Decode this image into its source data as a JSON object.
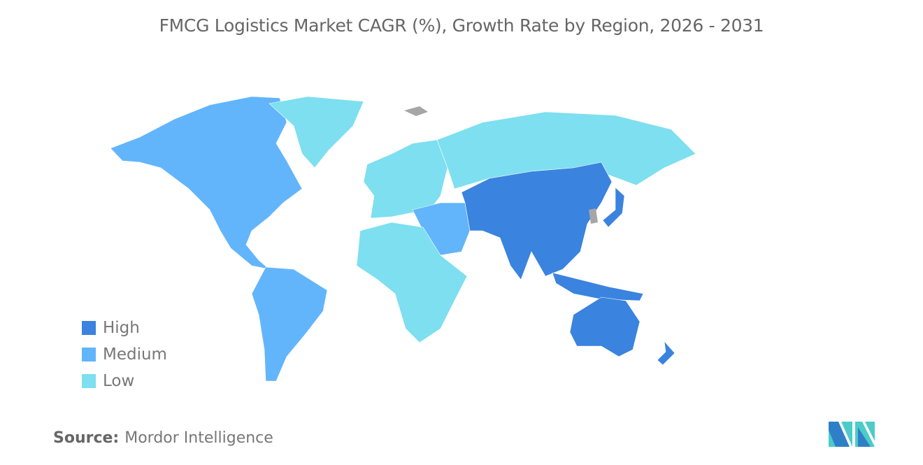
{
  "title": "FMCG Logistics Market CAGR (%), Growth Rate by Region, 2026 - 2031",
  "legend": [
    {
      "label": "High",
      "color": "#3a83df"
    },
    {
      "label": "Medium",
      "color": "#62b5fb"
    },
    {
      "label": "Low",
      "color": "#7ddfef"
    }
  ],
  "no_data_color": "#a6a6a6",
  "regions": {
    "north_america": "Medium",
    "south_america": "Medium",
    "middle_east": "Medium",
    "greenland": "Low",
    "europe": "Low",
    "russia": "Low",
    "africa": "Low",
    "asia_pacific": "High"
  },
  "source": {
    "label": "Source:",
    "value": "Mordor Intelligence"
  },
  "logo": {
    "text": "Mordor Intelligence"
  }
}
